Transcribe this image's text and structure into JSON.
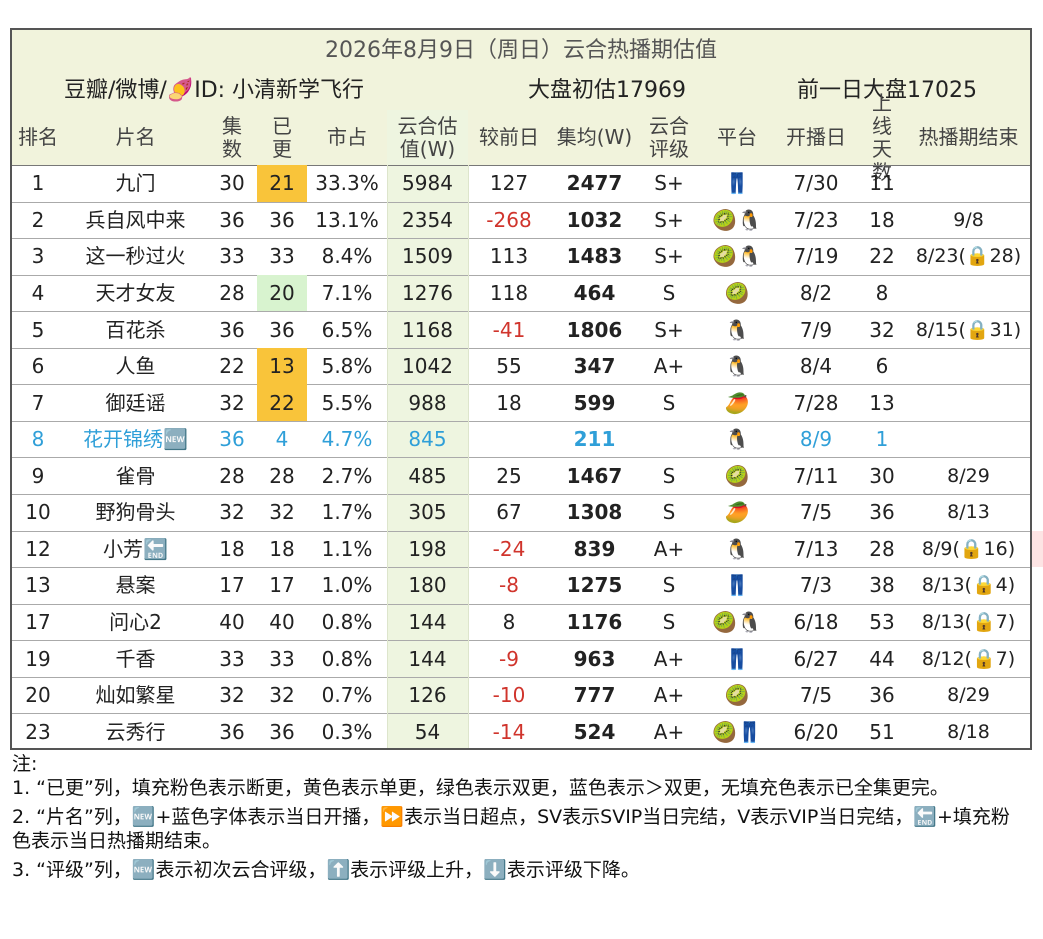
{
  "header": {
    "title": "2026年8月9日（周日）云合热播期估值",
    "source": "豆瓣/微博/🍠ID: 小清新学飞行",
    "market_estimate": "大盘初估17969",
    "previous_market": "前一日大盘17025"
  },
  "table": {
    "columns": [
      "排名",
      "片名",
      "集数",
      "已更",
      "市占",
      "云合估值(W)",
      "较前日",
      "集均(W)",
      "云合评级",
      "平台",
      "开播日",
      "上线天数",
      "热播期结束"
    ],
    "rows": [
      {
        "cells": [
          "1",
          "九门",
          "30",
          "21",
          "33.3%",
          "5984",
          "127",
          "2477",
          "S+",
          "👖",
          "7/30",
          "11",
          null
        ],
        "update_color": "#f9c43a"
      },
      {
        "cells": [
          "2",
          "兵自风中来",
          "36",
          "36",
          "13.1%",
          "2354",
          "-268",
          "1032",
          "S+",
          "🥝🐧",
          "7/23",
          "18",
          "9/8"
        ]
      },
      {
        "cells": [
          "3",
          "这一秒过火",
          "33",
          "33",
          "8.4%",
          "1509",
          "113",
          "1483",
          "S+",
          "🥝🐧",
          "7/19",
          "22",
          "8/23(🔒28)"
        ]
      },
      {
        "cells": [
          "4",
          "天才女友",
          "28",
          "20",
          "7.1%",
          "1276",
          "118",
          "464",
          "S",
          "🥝",
          "8/2",
          "8",
          null
        ],
        "update_color": "#d8f3cf"
      },
      {
        "cells": [
          "5",
          "百花杀",
          "36",
          "36",
          "6.5%",
          "1168",
          "-41",
          "1806",
          "S+",
          "🐧",
          "7/9",
          "32",
          "8/15(🔒31)"
        ]
      },
      {
        "cells": [
          "6",
          "人鱼",
          "22",
          "13",
          "5.8%",
          "1042",
          "55",
          "347",
          "A+",
          "🐧",
          "8/4",
          "6",
          null
        ],
        "update_color": "#f9c43a"
      },
      {
        "cells": [
          "7",
          "御廷谣",
          "32",
          "22",
          "5.5%",
          "988",
          "18",
          "599",
          "S",
          "🥭",
          "7/28",
          "13",
          null
        ],
        "update_color": "#f9c43a"
      },
      {
        "cells": [
          "8",
          "花开锦绣🆕",
          "36",
          "4",
          "4.7%",
          "845",
          null,
          "211",
          null,
          "🐧",
          "8/9",
          "1",
          null
        ],
        "text_color": "#2f9fd8"
      },
      {
        "cells": [
          "9",
          "雀骨",
          "28",
          "28",
          "2.7%",
          "485",
          "25",
          "1467",
          "S",
          "🥝",
          "7/11",
          "30",
          "8/29"
        ]
      },
      {
        "cells": [
          "10",
          "野狗骨头",
          "32",
          "32",
          "1.7%",
          "305",
          "67",
          "1308",
          "S",
          "🥭",
          "7/5",
          "36",
          "8/13"
        ]
      },
      {
        "cells": [
          "12",
          "小芳🔚",
          "18",
          "18",
          "1.1%",
          "198",
          "-24",
          "839",
          "A+",
          "🐧",
          "7/13",
          "28",
          "8/9(🔒16)"
        ],
        "row_color": "#fde4e4"
      },
      {
        "cells": [
          "13",
          "悬案",
          "17",
          "17",
          "1.0%",
          "180",
          "-8",
          "1275",
          "S",
          "👖",
          "7/3",
          "38",
          "8/13(🔒4)"
        ]
      },
      {
        "cells": [
          "17",
          "问心2",
          "40",
          "40",
          "0.8%",
          "144",
          "8",
          "1176",
          "S",
          "🥝🐧",
          "6/18",
          "53",
          "8/13(🔒7)"
        ]
      },
      {
        "cells": [
          "19",
          "千香",
          "33",
          "33",
          "0.8%",
          "144",
          "-9",
          "963",
          "A+",
          "👖",
          "6/27",
          "44",
          "8/12(🔒7)"
        ]
      },
      {
        "cells": [
          "20",
          "灿如繁星",
          "32",
          "32",
          "0.7%",
          "126",
          "-10",
          "777",
          "A+",
          "🥝",
          "7/5",
          "36",
          "8/29"
        ]
      },
      {
        "cells": [
          "23",
          "云秀行",
          "36",
          "36",
          "0.3%",
          "54",
          "-14",
          "524",
          "A+",
          "🥝👖",
          "6/20",
          "51",
          "8/18"
        ]
      }
    ]
  },
  "notes": {
    "label": "注:",
    "items": [
      "1. “已更”列，填充粉色表示断更，黄色表示单更，绿色表示双更，蓝色表示＞双更，无填充色表示已全集更完。",
      "2. “片名”列，🆕+蓝色字体表示当日开播，⏩表示当日超点，SV表示SVIP当日完结，V表示VIP当日完结，🔚+填充粉色表示当日热播期结束。",
      "3. “评级”列，🆕表示初次云合评级，⬆️表示评级上升，⬇️表示评级下降。"
    ]
  }
}
